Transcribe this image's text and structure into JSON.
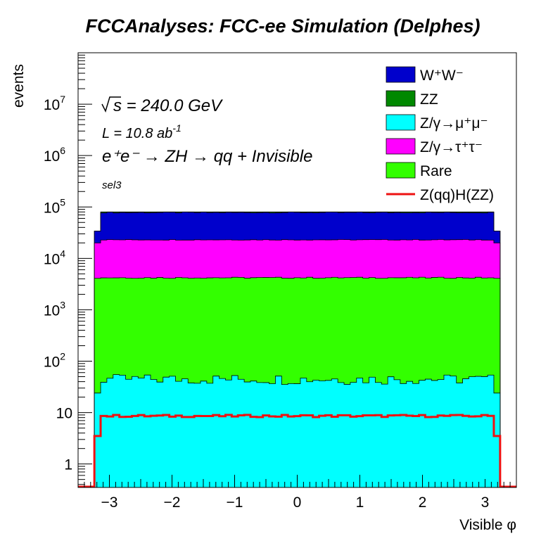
{
  "chart_data": {
    "type": "stacked-histogram",
    "title": "FCCAnalyses: FCC-ee Simulation (Delphes)",
    "xlabel": "Visible φ",
    "ylabel": "events",
    "xlim": [
      -3.5,
      3.5
    ],
    "ylim": [
      0.35,
      100000000
    ],
    "yscale": "log",
    "grid": false,
    "legend_position": "top-right",
    "x_ticks": [
      "−3",
      "−2",
      "−1",
      "0",
      "1",
      "2",
      "3"
    ],
    "y_ticks": [
      {
        "base": "1",
        "exp": ""
      },
      {
        "base": "10",
        "exp": ""
      },
      {
        "base": "10",
        "exp": "2"
      },
      {
        "base": "10",
        "exp": "3"
      },
      {
        "base": "10",
        "exp": "4"
      },
      {
        "base": "10",
        "exp": "5"
      },
      {
        "base": "10",
        "exp": "6"
      },
      {
        "base": "10",
        "exp": "7"
      }
    ],
    "annotations": {
      "sqrt_s": "s = 240.0 GeV",
      "lumi": "L = 10.8 ab",
      "lumi_exp": "-1",
      "process": "e⁺e⁻ → ZH → qq + Invisible",
      "selection": "sel3"
    },
    "bin_edges_approx": {
      "first_bin": [
        -3.24,
        -3.14
      ],
      "last_bin": [
        3.14,
        3.24
      ]
    },
    "series": [
      {
        "name": "W⁺W⁻",
        "color": "#0000cc",
        "stack_top": {
          "edge": 34000,
          "middle": 78000
        }
      },
      {
        "name": "ZZ",
        "color": "#008800",
        "stack_top": {
          "edge": 34000,
          "middle": 80000
        }
      },
      {
        "name": "Z/γ→μ⁺μ⁻",
        "color": "#00ffff",
        "stack_top": {
          "edge": 24,
          "middle": 45
        }
      },
      {
        "name": "Z/γ→τ⁺τ⁻",
        "color": "#ff00ff",
        "stack_top": {
          "edge": 20000,
          "middle": 23000
        }
      },
      {
        "name": "Rare",
        "color": "#33ff00",
        "stack_top": {
          "edge": 4100,
          "middle": 4200
        }
      },
      {
        "name": "Z(qq)H(ZZ)",
        "color": "#ee1111",
        "style": "line",
        "values": {
          "edge": 3.5,
          "middle": 8.6
        }
      }
    ]
  }
}
